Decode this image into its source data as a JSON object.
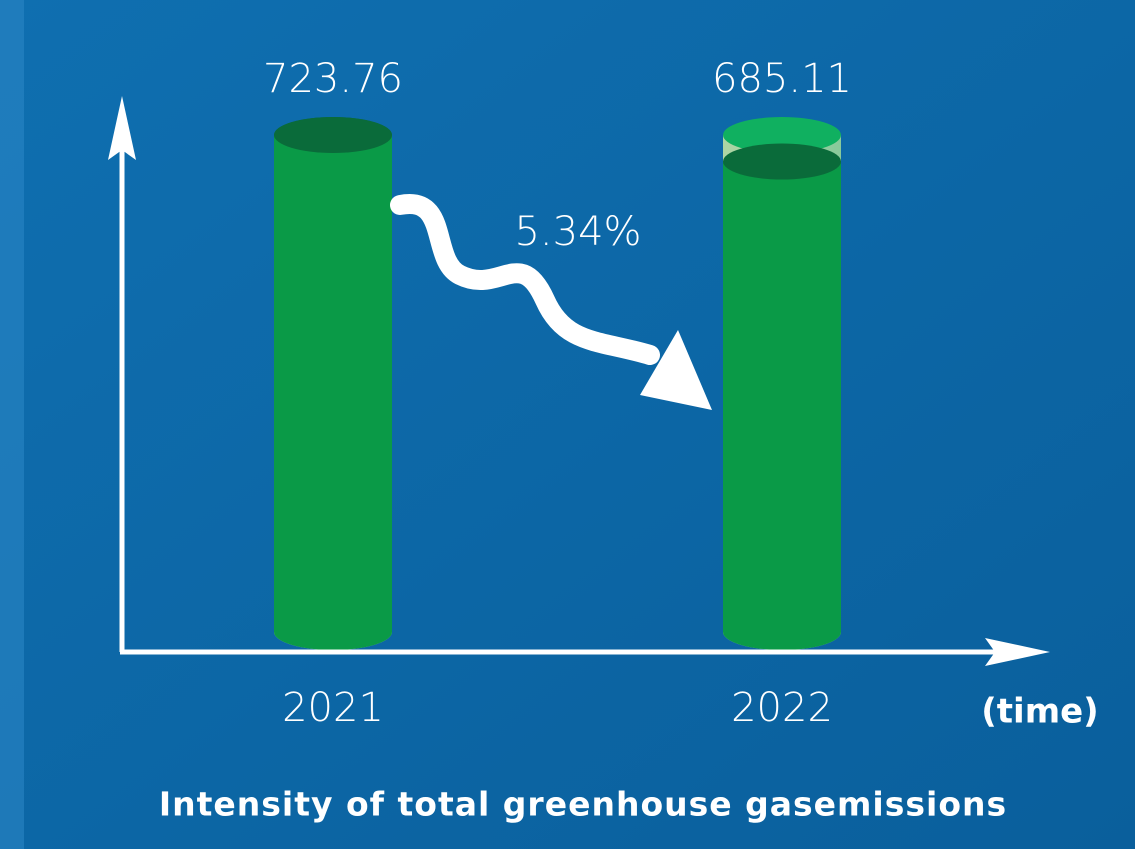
{
  "chart_data": {
    "type": "cylinder",
    "title": "Intensity of total greenhouse gasemissions",
    "x_label": "(time)",
    "annotation": "5.34%",
    "categories": [
      "2021",
      "2022"
    ],
    "values": [
      723.76,
      685.11
    ],
    "value_labels": [
      "723.76",
      "685.11"
    ],
    "color": "#0a9a47"
  }
}
